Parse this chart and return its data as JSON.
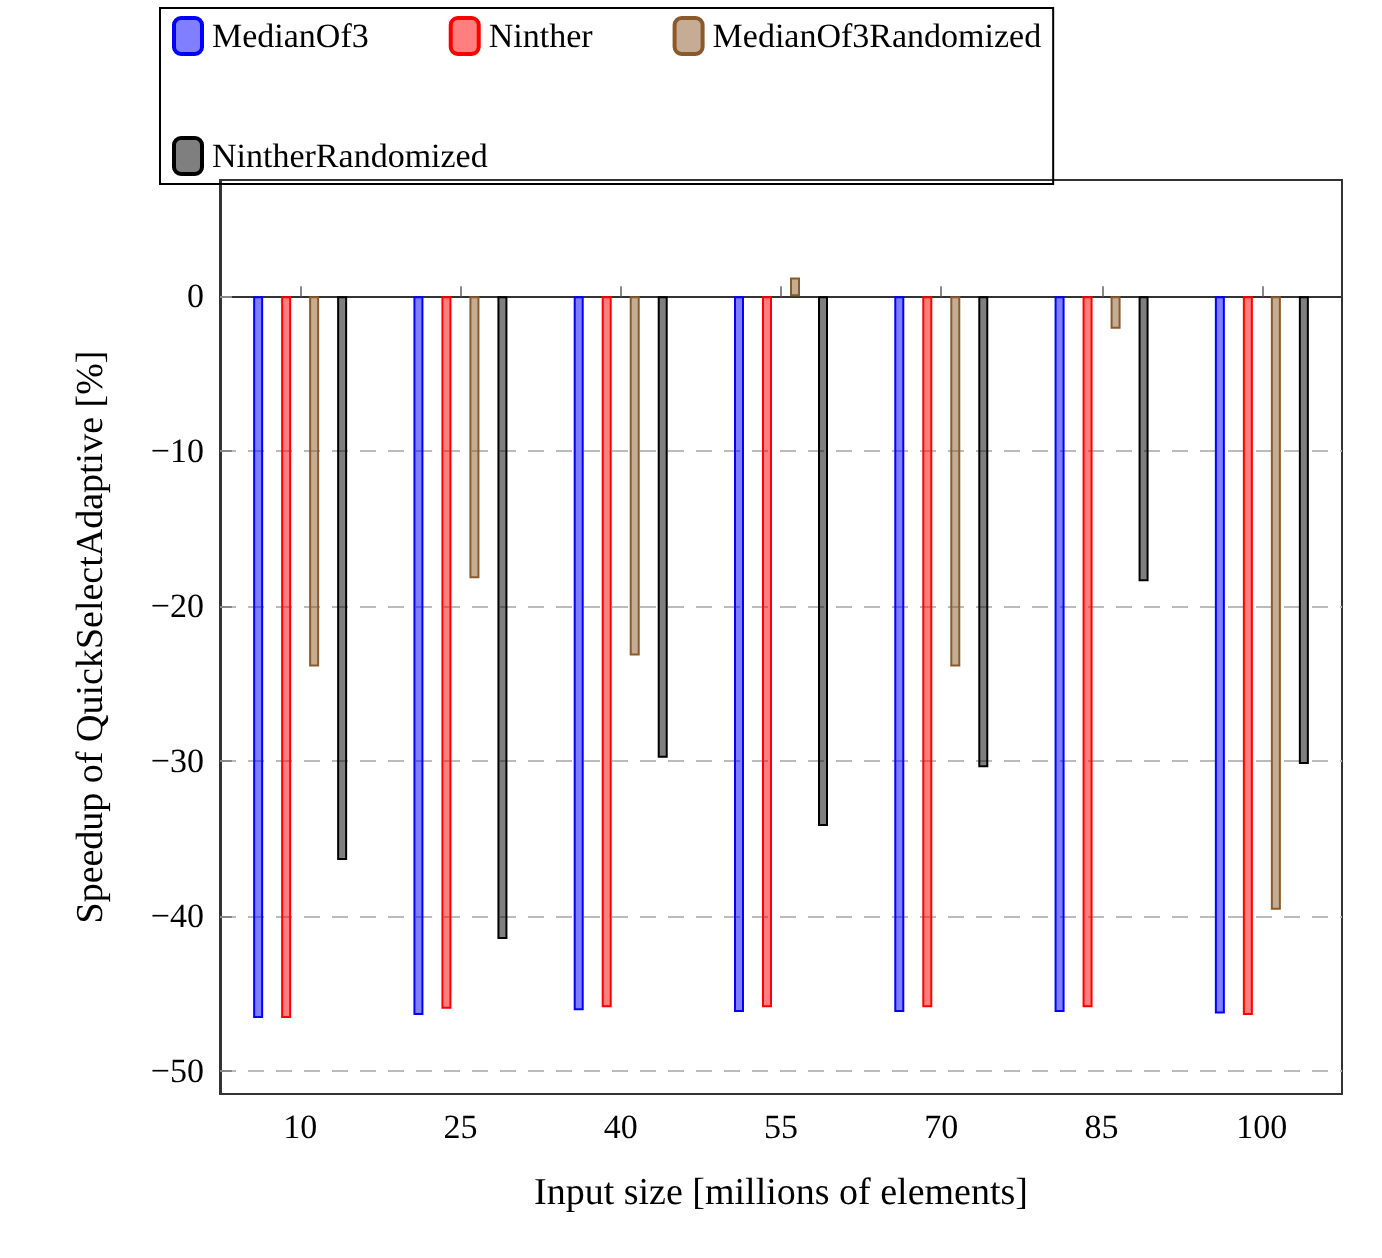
{
  "chart_data": {
    "type": "bar",
    "xlabel": "Input size [millions of elements]",
    "ylabel": "Speedup of QuickSelectAdaptive [%]",
    "categories": [
      "10",
      "25",
      "40",
      "55",
      "70",
      "85",
      "100"
    ],
    "series": [
      {
        "name": "MedianOf3",
        "color": "#0000ff",
        "values": [
          -46.6,
          -46.4,
          -46.1,
          -46.2,
          -46.2,
          -46.2,
          -46.3
        ]
      },
      {
        "name": "Ninther",
        "color": "#ff0000",
        "values": [
          -46.6,
          -46.0,
          -45.9,
          -45.9,
          -45.9,
          -45.9,
          -46.4
        ]
      },
      {
        "name": "MedianOf3Randomized",
        "color": "#8b5a2b",
        "values": [
          -23.9,
          -18.2,
          -23.2,
          1.2,
          -23.9,
          -2.1,
          -39.6
        ]
      },
      {
        "name": "NintherRandomized",
        "color": "#000000",
        "values": [
          -36.4,
          -41.5,
          -29.8,
          -34.2,
          -30.4,
          -18.4,
          -30.2
        ]
      }
    ],
    "ylim": [
      -51.5,
      7.5
    ],
    "yticks": [
      {
        "value": -50,
        "label": "−50"
      },
      {
        "value": -40,
        "label": "−40"
      },
      {
        "value": -30,
        "label": "−30"
      },
      {
        "value": -20,
        "label": "−20"
      },
      {
        "value": -10,
        "label": "−10"
      },
      0
    ],
    "grid": "y",
    "legend": "top"
  }
}
